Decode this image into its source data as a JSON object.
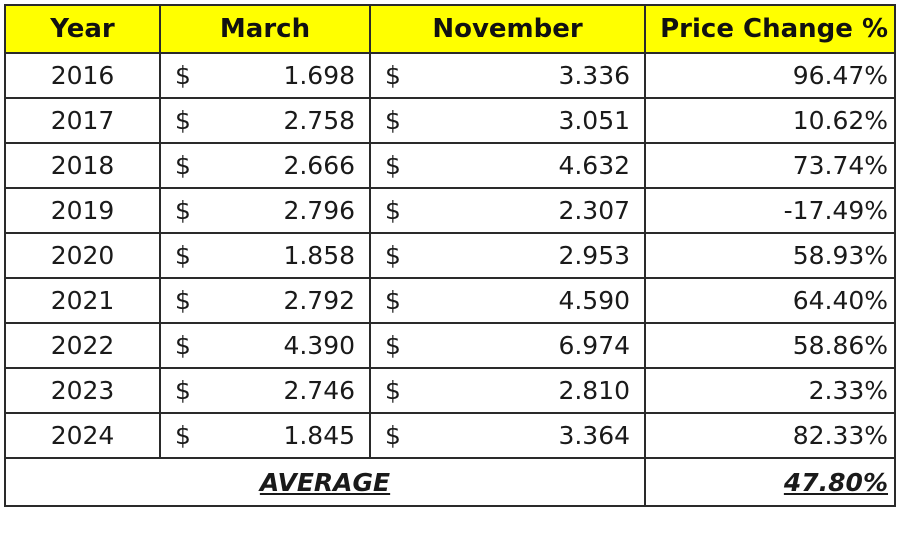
{
  "headers": {
    "year": "Year",
    "march": "March",
    "november": "November",
    "price_change": "Price Change %"
  },
  "currency_symbol": "$",
  "rows": [
    {
      "year": "2016",
      "march": "1.698",
      "november": "3.336",
      "change": "96.47%"
    },
    {
      "year": "2017",
      "march": "2.758",
      "november": "3.051",
      "change": "10.62%"
    },
    {
      "year": "2018",
      "march": "2.666",
      "november": "4.632",
      "change": "73.74%"
    },
    {
      "year": "2019",
      "march": "2.796",
      "november": "2.307",
      "change": "-17.49%"
    },
    {
      "year": "2020",
      "march": "1.858",
      "november": "2.953",
      "change": "58.93%"
    },
    {
      "year": "2021",
      "march": "2.792",
      "november": "4.590",
      "change": "64.40%"
    },
    {
      "year": "2022",
      "march": "4.390",
      "november": "6.974",
      "change": "58.86%"
    },
    {
      "year": "2023",
      "march": "2.746",
      "november": "2.810",
      "change": "2.33%"
    },
    {
      "year": "2024",
      "march": "1.845",
      "november": "3.364",
      "change": "82.33%"
    }
  ],
  "average": {
    "label": "AVERAGE",
    "value": "47.80%"
  },
  "colors": {
    "header_background": "#ffff00",
    "border": "#2a2a2a"
  }
}
